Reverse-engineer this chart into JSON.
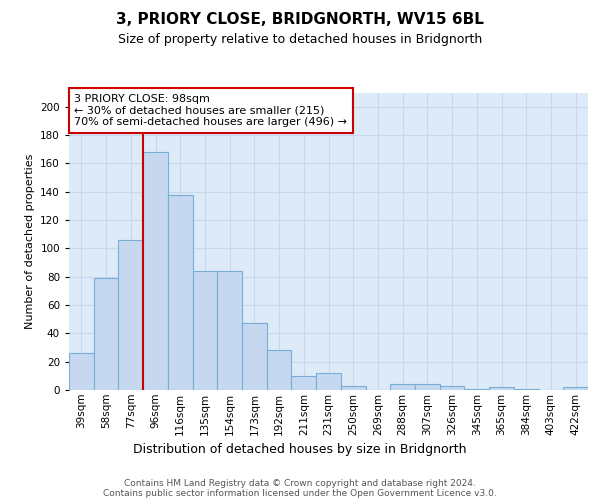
{
  "title1": "3, PRIORY CLOSE, BRIDGNORTH, WV15 6BL",
  "title2": "Size of property relative to detached houses in Bridgnorth",
  "xlabel": "Distribution of detached houses by size in Bridgnorth",
  "ylabel": "Number of detached properties",
  "categories": [
    "39sqm",
    "58sqm",
    "77sqm",
    "96sqm",
    "116sqm",
    "135sqm",
    "154sqm",
    "173sqm",
    "192sqm",
    "211sqm",
    "231sqm",
    "250sqm",
    "269sqm",
    "288sqm",
    "307sqm",
    "326sqm",
    "345sqm",
    "365sqm",
    "384sqm",
    "403sqm",
    "422sqm"
  ],
  "values": [
    26,
    79,
    106,
    168,
    138,
    84,
    84,
    47,
    28,
    10,
    12,
    3,
    0,
    4,
    4,
    3,
    1,
    2,
    1,
    0,
    2
  ],
  "bar_color": "#c5d8f0",
  "bar_edge_color": "#7aadd4",
  "vline_x_index": 3,
  "vline_color": "#cc0000",
  "annotation_text": "3 PRIORY CLOSE: 98sqm\n← 30% of detached houses are smaller (215)\n70% of semi-detached houses are larger (496) →",
  "annotation_box_color": "#ffffff",
  "annotation_box_edge": "#cc0000",
  "ylim": [
    0,
    210
  ],
  "yticks": [
    0,
    20,
    40,
    60,
    80,
    100,
    120,
    140,
    160,
    180,
    200
  ],
  "grid_color": "#c8d8ec",
  "footer1": "Contains HM Land Registry data © Crown copyright and database right 2024.",
  "footer2": "Contains public sector information licensed under the Open Government Licence v3.0.",
  "bg_color": "#ddeaf8",
  "fig_bg": "#ffffff",
  "title1_fontsize": 11,
  "title2_fontsize": 9,
  "ylabel_fontsize": 8,
  "xlabel_fontsize": 9,
  "footer_fontsize": 6.5,
  "tick_fontsize": 7.5,
  "annot_fontsize": 8
}
